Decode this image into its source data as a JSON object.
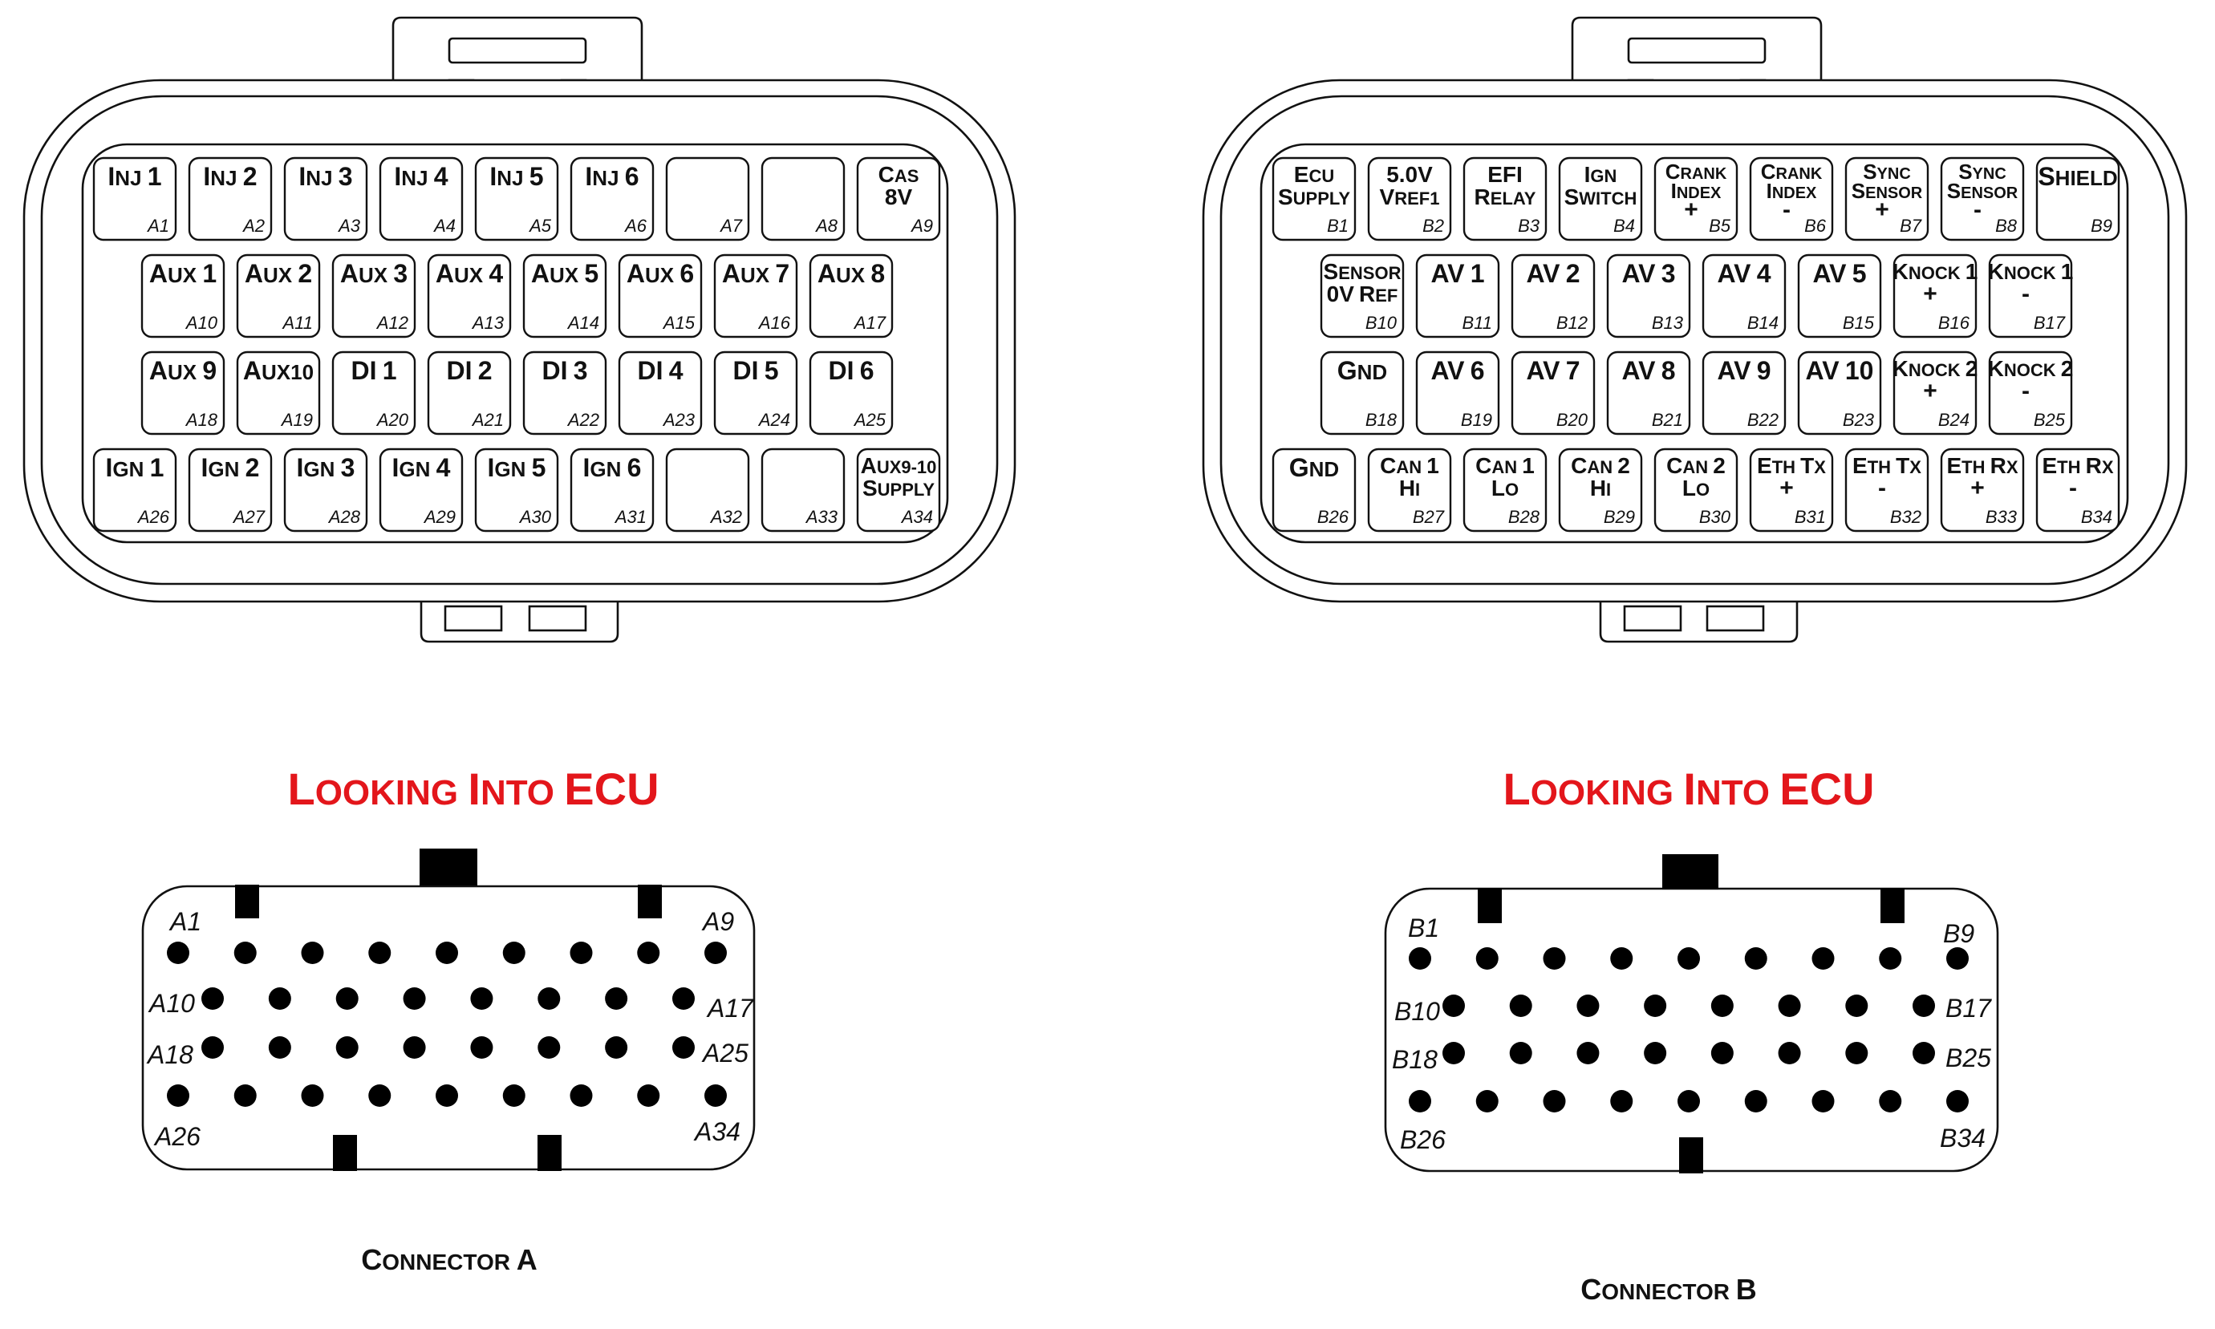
{
  "colors": {
    "highlight_green": "#1aaf6c",
    "highlight_grey": "#c9c9c9",
    "title_red": "#e3161b"
  },
  "connector_a": {
    "title": "Looking Into ECU",
    "caption": "Connector A",
    "rows": [
      [
        {
          "id": "A1",
          "label": [
            "Inj 1"
          ]
        },
        {
          "id": "A2",
          "label": [
            "Inj 2"
          ]
        },
        {
          "id": "A3",
          "label": [
            "Inj 3"
          ]
        },
        {
          "id": "A4",
          "label": [
            "Inj 4"
          ]
        },
        {
          "id": "A5",
          "label": [
            "Inj 5"
          ]
        },
        {
          "id": "A6",
          "label": [
            "Inj 6"
          ]
        },
        {
          "id": "A7",
          "label": []
        },
        {
          "id": "A8",
          "label": []
        },
        {
          "id": "A9",
          "label": [
            "Cas",
            "8V"
          ]
        }
      ],
      [
        {
          "id": "A10",
          "label": [
            "Aux 1"
          ]
        },
        {
          "id": "A11",
          "label": [
            "Aux 2"
          ]
        },
        {
          "id": "A12",
          "label": [
            "Aux 3"
          ]
        },
        {
          "id": "A13",
          "label": [
            "Aux 4"
          ]
        },
        {
          "id": "A14",
          "label": [
            "Aux 5"
          ]
        },
        {
          "id": "A15",
          "label": [
            "Aux 6"
          ]
        },
        {
          "id": "A16",
          "label": [
            "Aux 7"
          ]
        },
        {
          "id": "A17",
          "label": [
            "Aux 8"
          ]
        }
      ],
      [
        {
          "id": "A18",
          "label": [
            "Aux 9"
          ]
        },
        {
          "id": "A19",
          "label": [
            "Aux10"
          ]
        },
        {
          "id": "A20",
          "label": [
            "DI 1"
          ]
        },
        {
          "id": "A21",
          "label": [
            "DI 2"
          ]
        },
        {
          "id": "A22",
          "label": [
            "DI 3"
          ]
        },
        {
          "id": "A23",
          "label": [
            "DI 4"
          ]
        },
        {
          "id": "A24",
          "label": [
            "DI 5"
          ]
        },
        {
          "id": "A25",
          "label": [
            "DI 6"
          ]
        }
      ],
      [
        {
          "id": "A26",
          "label": [
            "Ign 1"
          ]
        },
        {
          "id": "A27",
          "label": [
            "Ign 2"
          ]
        },
        {
          "id": "A28",
          "label": [
            "Ign 3"
          ]
        },
        {
          "id": "A29",
          "label": [
            "Ign 4"
          ]
        },
        {
          "id": "A30",
          "label": [
            "Ign 5"
          ]
        },
        {
          "id": "A31",
          "label": [
            "Ign 6"
          ]
        },
        {
          "id": "A32",
          "label": []
        },
        {
          "id": "A33",
          "label": []
        },
        {
          "id": "A34",
          "label": [
            "Aux9-10",
            "Supply"
          ]
        }
      ]
    ],
    "face_corners": {
      "top_left": "A1",
      "top_right": "A9",
      "row2_left": "A10",
      "row2_right": "A17",
      "row3_left": "A18",
      "row3_right": "A25",
      "bottom_left": "A26",
      "bottom_right": "A34"
    }
  },
  "connector_b": {
    "title": "Looking Into ECU",
    "caption": "Connector B",
    "rows": [
      [
        {
          "id": "B1",
          "label": [
            "Ecu",
            "Supply"
          ]
        },
        {
          "id": "B2",
          "label": [
            "5.0V",
            "Vref1"
          ]
        },
        {
          "id": "B3",
          "label": [
            "EFI",
            "Relay"
          ]
        },
        {
          "id": "B4",
          "label": [
            "Ign",
            "Switch"
          ]
        },
        {
          "id": "B5",
          "label": [
            "Crank",
            "Index",
            "+"
          ]
        },
        {
          "id": "B6",
          "label": [
            "Crank",
            "Index",
            "-"
          ]
        },
        {
          "id": "B7",
          "label": [
            "Sync",
            "Sensor",
            "+"
          ]
        },
        {
          "id": "B8",
          "label": [
            "Sync",
            "Sensor",
            "-"
          ]
        },
        {
          "id": "B9",
          "label": [
            "Shield"
          ]
        }
      ],
      [
        {
          "id": "B10",
          "label": [
            "Sensor",
            "0V Ref"
          ],
          "fill": "green"
        },
        {
          "id": "B11",
          "label": [
            "AV 1"
          ]
        },
        {
          "id": "B12",
          "label": [
            "AV 2"
          ]
        },
        {
          "id": "B13",
          "label": [
            "AV 3"
          ]
        },
        {
          "id": "B14",
          "label": [
            "AV 4"
          ]
        },
        {
          "id": "B15",
          "label": [
            "AV 5"
          ]
        },
        {
          "id": "B16",
          "label": [
            "Knock 1",
            "+"
          ]
        },
        {
          "id": "B17",
          "label": [
            "Knock 1",
            "-"
          ]
        }
      ],
      [
        {
          "id": "B18",
          "label": [
            "Gnd"
          ],
          "fill": "grey"
        },
        {
          "id": "B19",
          "label": [
            "AV 6"
          ]
        },
        {
          "id": "B20",
          "label": [
            "AV 7"
          ]
        },
        {
          "id": "B21",
          "label": [
            "AV 8"
          ]
        },
        {
          "id": "B22",
          "label": [
            "AV 9"
          ]
        },
        {
          "id": "B23",
          "label": [
            "AV 10"
          ]
        },
        {
          "id": "B24",
          "label": [
            "Knock 2",
            "+"
          ]
        },
        {
          "id": "B25",
          "label": [
            "Knock 2",
            "-"
          ]
        }
      ],
      [
        {
          "id": "B26",
          "label": [
            "Gnd"
          ],
          "fill": "grey"
        },
        {
          "id": "B27",
          "label": [
            "Can 1",
            "Hi"
          ]
        },
        {
          "id": "B28",
          "label": [
            "Can 1",
            "Lo"
          ]
        },
        {
          "id": "B29",
          "label": [
            "Can 2",
            "Hi"
          ]
        },
        {
          "id": "B30",
          "label": [
            "Can 2",
            "Lo"
          ]
        },
        {
          "id": "B31",
          "label": [
            "Eth Tx",
            "+"
          ]
        },
        {
          "id": "B32",
          "label": [
            "Eth Tx",
            "-"
          ]
        },
        {
          "id": "B33",
          "label": [
            "Eth Rx",
            "+"
          ]
        },
        {
          "id": "B34",
          "label": [
            "Eth Rx",
            "-"
          ]
        }
      ]
    ],
    "face_corners": {
      "top_left": "B1",
      "top_right": "B9",
      "row2_left": "B10",
      "row2_right": "B17",
      "row3_left": "B18",
      "row3_right": "B25",
      "bottom_left": "B26",
      "bottom_right": "B34"
    }
  }
}
